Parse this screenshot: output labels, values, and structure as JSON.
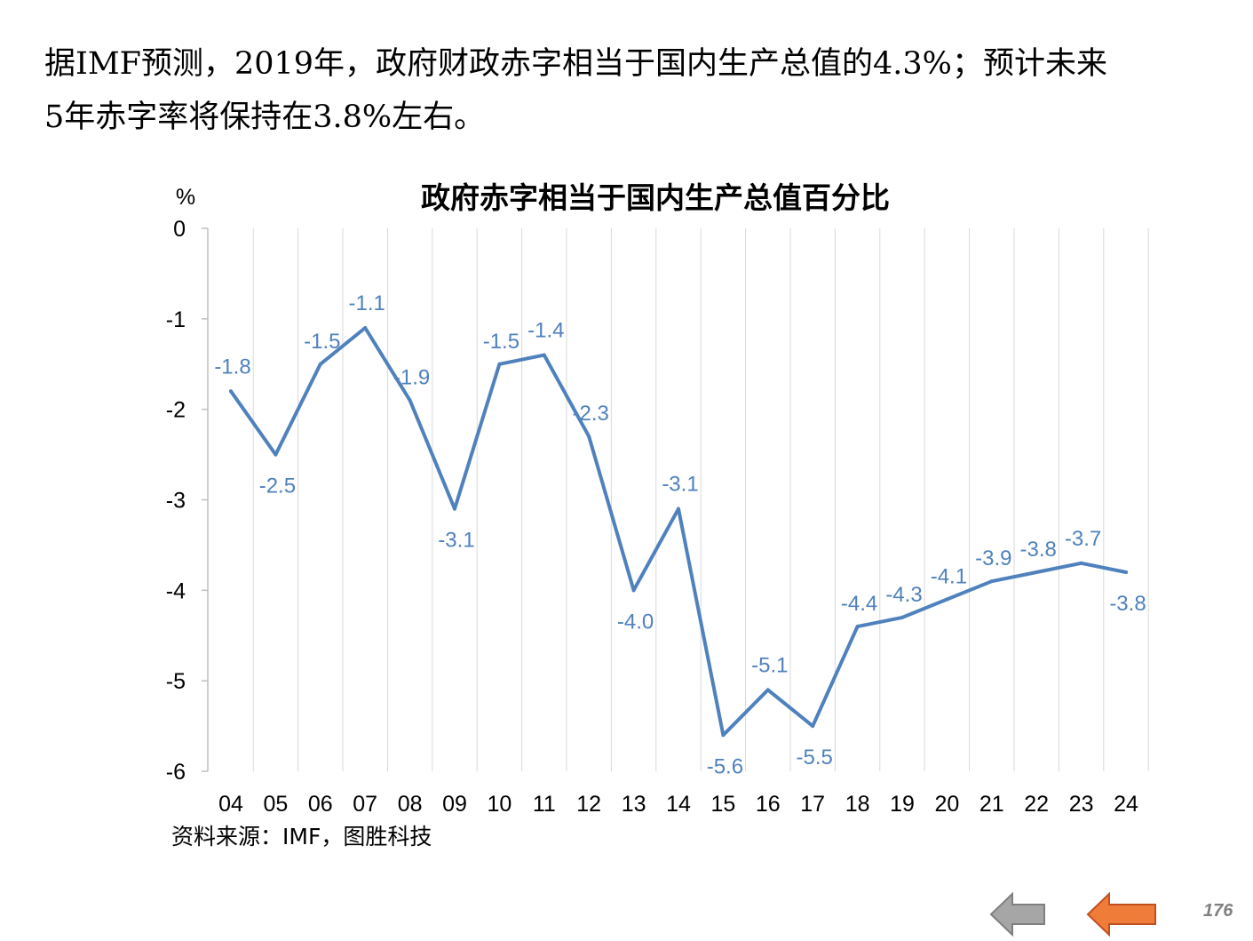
{
  "intro": {
    "line1": "据IMF预测，2019年，政府财政赤字相当于国内生产总值的4.3%；预计未来",
    "line2": "5年赤字率将保持在3.8%左右。"
  },
  "source": "资料来源：IMF，图胜科技",
  "page_number": "176",
  "navigation": {
    "prev_color": "#a6a6a6",
    "next_color": "#f07c3a",
    "prev_icon": "left-arrow-icon",
    "next_icon": "left-arrow-icon"
  },
  "chart_data": {
    "type": "line",
    "title": "政府赤字相当于国内生产总值百分比",
    "ylabel": "%",
    "xlabel": "",
    "ylim": [
      -6,
      0
    ],
    "yticks": [
      0,
      -1,
      -2,
      -3,
      -4,
      -5,
      -6
    ],
    "grid": "vertical",
    "categories": [
      "04",
      "05",
      "06",
      "07",
      "08",
      "09",
      "10",
      "11",
      "12",
      "13",
      "14",
      "15",
      "16",
      "17",
      "18",
      "19",
      "20",
      "21",
      "22",
      "23",
      "24"
    ],
    "series": [
      {
        "color": "#4f81bd",
        "values": [
          -1.8,
          -2.5,
          -1.5,
          -1.1,
          -1.9,
          -3.1,
          -1.5,
          -1.4,
          -2.3,
          -4.0,
          -3.1,
          -5.6,
          -5.1,
          -5.5,
          -4.4,
          -4.3,
          -4.1,
          -3.9,
          -3.8,
          -3.7,
          -3.8
        ],
        "labels": [
          "-1.8",
          "-2.5",
          "-1.5",
          "-1.1",
          "-1.9",
          "-3.1",
          "-1.5",
          "-1.4",
          "-2.3",
          "-4.0",
          "-3.1",
          "-5.6",
          "-5.1",
          "-5.5",
          "-4.4",
          "-4.3",
          "-4.1",
          "-3.9",
          "-3.8",
          "-3.7",
          "-3.8"
        ]
      }
    ]
  }
}
